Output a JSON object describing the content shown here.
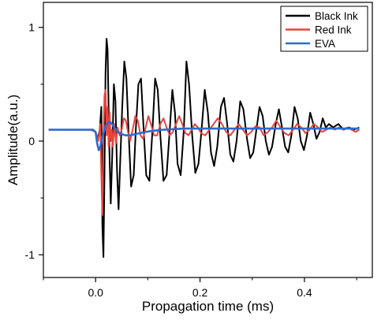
{
  "chart_data": {
    "type": "line",
    "title": "",
    "xlabel": "Propagation time (ms)",
    "ylabel": "Amplitude(a.u.)",
    "xlim": [
      -0.1,
      0.53
    ],
    "ylim": [
      -1.2,
      1.22
    ],
    "x_ticks": [
      0.0,
      0.2,
      0.4
    ],
    "x_tick_labels": [
      "0.0",
      "0.2",
      "0.4"
    ],
    "y_ticks": [
      -1,
      0,
      1
    ],
    "y_tick_labels": [
      "-1",
      "0",
      "1"
    ],
    "grid": false,
    "legend_position": "top-right",
    "series": [
      {
        "name": "Black Ink",
        "color": "#000000",
        "points": [
          [
            -0.09,
            0.1
          ],
          [
            -0.06,
            0.1
          ],
          [
            -0.03,
            0.1
          ],
          [
            -0.005,
            0.1
          ],
          [
            0.0,
            0.08
          ],
          [
            0.004,
            0.02
          ],
          [
            0.008,
            0.1
          ],
          [
            0.011,
            0.3
          ],
          [
            0.013,
            -0.75
          ],
          [
            0.015,
            -1.02
          ],
          [
            0.017,
            -0.3
          ],
          [
            0.019,
            0.6
          ],
          [
            0.021,
            0.9
          ],
          [
            0.023,
            0.8
          ],
          [
            0.026,
            0.0
          ],
          [
            0.029,
            -0.55
          ],
          [
            0.032,
            -0.1
          ],
          [
            0.035,
            0.5
          ],
          [
            0.038,
            0.35
          ],
          [
            0.041,
            -0.25
          ],
          [
            0.044,
            -0.6
          ],
          [
            0.047,
            -0.2
          ],
          [
            0.051,
            0.3
          ],
          [
            0.055,
            0.7
          ],
          [
            0.059,
            0.55
          ],
          [
            0.063,
            0.1
          ],
          [
            0.068,
            -0.4
          ],
          [
            0.073,
            -0.3
          ],
          [
            0.077,
            0.1
          ],
          [
            0.082,
            0.5
          ],
          [
            0.087,
            0.55
          ],
          [
            0.092,
            0.1
          ],
          [
            0.097,
            -0.3
          ],
          [
            0.103,
            -0.35
          ],
          [
            0.109,
            0.1
          ],
          [
            0.114,
            0.55
          ],
          [
            0.119,
            0.45
          ],
          [
            0.124,
            0.05
          ],
          [
            0.13,
            -0.35
          ],
          [
            0.136,
            -0.3
          ],
          [
            0.142,
            0.1
          ],
          [
            0.147,
            0.45
          ],
          [
            0.152,
            0.25
          ],
          [
            0.157,
            -0.2
          ],
          [
            0.163,
            -0.3
          ],
          [
            0.169,
            0.1
          ],
          [
            0.174,
            0.7
          ],
          [
            0.179,
            0.5
          ],
          [
            0.185,
            0.05
          ],
          [
            0.191,
            -0.28
          ],
          [
            0.197,
            -0.2
          ],
          [
            0.203,
            0.1
          ],
          [
            0.209,
            0.45
          ],
          [
            0.215,
            0.25
          ],
          [
            0.221,
            -0.1
          ],
          [
            0.227,
            -0.22
          ],
          [
            0.233,
            -0.05
          ],
          [
            0.24,
            0.3
          ],
          [
            0.246,
            0.38
          ],
          [
            0.252,
            0.15
          ],
          [
            0.258,
            -0.12
          ],
          [
            0.264,
            -0.18
          ],
          [
            0.27,
            0.0
          ],
          [
            0.277,
            0.35
          ],
          [
            0.283,
            0.28
          ],
          [
            0.29,
            0.02
          ],
          [
            0.296,
            -0.15
          ],
          [
            0.302,
            -0.1
          ],
          [
            0.308,
            0.1
          ],
          [
            0.314,
            0.3
          ],
          [
            0.32,
            0.22
          ],
          [
            0.326,
            0.0
          ],
          [
            0.332,
            -0.12
          ],
          [
            0.338,
            -0.05
          ],
          [
            0.345,
            0.15
          ],
          [
            0.351,
            0.28
          ],
          [
            0.357,
            0.12
          ],
          [
            0.363,
            -0.05
          ],
          [
            0.369,
            -0.1
          ],
          [
            0.375,
            0.05
          ],
          [
            0.381,
            0.3
          ],
          [
            0.387,
            0.2
          ],
          [
            0.393,
            0.0
          ],
          [
            0.399,
            -0.08
          ],
          [
            0.405,
            0.05
          ],
          [
            0.411,
            0.25
          ],
          [
            0.417,
            0.15
          ],
          [
            0.423,
            0.02
          ],
          [
            0.429,
            0.08
          ],
          [
            0.435,
            0.2
          ],
          [
            0.441,
            0.12
          ],
          [
            0.447,
            0.15
          ],
          [
            0.455,
            0.12
          ],
          [
            0.465,
            0.15
          ],
          [
            0.475,
            0.1
          ],
          [
            0.485,
            0.12
          ],
          [
            0.495,
            0.1
          ],
          [
            0.505,
            0.12
          ]
        ]
      },
      {
        "name": "Red Ink",
        "color": "#e8443c",
        "points": [
          [
            -0.09,
            0.1
          ],
          [
            -0.05,
            0.1
          ],
          [
            -0.01,
            0.1
          ],
          [
            0.0,
            0.08
          ],
          [
            0.005,
            0.0
          ],
          [
            0.009,
            0.15
          ],
          [
            0.011,
            -0.3
          ],
          [
            0.013,
            -0.65
          ],
          [
            0.015,
            0.0
          ],
          [
            0.017,
            0.4
          ],
          [
            0.019,
            0.45
          ],
          [
            0.021,
            0.05
          ],
          [
            0.023,
            0.3
          ],
          [
            0.025,
            -0.05
          ],
          [
            0.027,
            0.25
          ],
          [
            0.029,
            0.0
          ],
          [
            0.031,
            0.1
          ],
          [
            0.033,
            -0.05
          ],
          [
            0.036,
            0.15
          ],
          [
            0.039,
            -0.02
          ],
          [
            0.042,
            0.12
          ],
          [
            0.046,
            0.05
          ],
          [
            0.05,
            0.1
          ],
          [
            0.054,
            0.2
          ],
          [
            0.058,
            0.18
          ],
          [
            0.062,
            0.08
          ],
          [
            0.066,
            0.0
          ],
          [
            0.071,
            0.1
          ],
          [
            0.076,
            0.22
          ],
          [
            0.081,
            0.18
          ],
          [
            0.086,
            0.05
          ],
          [
            0.091,
            0.02
          ],
          [
            0.096,
            0.12
          ],
          [
            0.101,
            0.22
          ],
          [
            0.106,
            0.15
          ],
          [
            0.112,
            0.05
          ],
          [
            0.118,
            0.05
          ],
          [
            0.124,
            0.15
          ],
          [
            0.13,
            0.2
          ],
          [
            0.136,
            0.12
          ],
          [
            0.142,
            0.05
          ],
          [
            0.148,
            0.08
          ],
          [
            0.154,
            0.15
          ],
          [
            0.16,
            0.22
          ],
          [
            0.166,
            0.15
          ],
          [
            0.172,
            0.07
          ],
          [
            0.178,
            0.05
          ],
          [
            0.184,
            0.1
          ],
          [
            0.19,
            0.15
          ],
          [
            0.196,
            0.12
          ],
          [
            0.202,
            0.07
          ],
          [
            0.21,
            0.05
          ],
          [
            0.218,
            0.1
          ],
          [
            0.226,
            0.15
          ],
          [
            0.234,
            0.2
          ],
          [
            0.242,
            0.15
          ],
          [
            0.25,
            0.08
          ],
          [
            0.258,
            0.05
          ],
          [
            0.266,
            0.1
          ],
          [
            0.274,
            0.15
          ],
          [
            0.282,
            0.1
          ],
          [
            0.29,
            0.05
          ],
          [
            0.298,
            0.08
          ],
          [
            0.306,
            0.13
          ],
          [
            0.314,
            0.12
          ],
          [
            0.322,
            0.05
          ],
          [
            0.33,
            0.08
          ],
          [
            0.338,
            0.12
          ],
          [
            0.346,
            0.18
          ],
          [
            0.354,
            0.12
          ],
          [
            0.362,
            0.07
          ],
          [
            0.37,
            0.05
          ],
          [
            0.378,
            0.1
          ],
          [
            0.386,
            0.15
          ],
          [
            0.394,
            0.12
          ],
          [
            0.402,
            0.07
          ],
          [
            0.41,
            0.1
          ],
          [
            0.418,
            0.15
          ],
          [
            0.426,
            0.12
          ],
          [
            0.434,
            0.08
          ],
          [
            0.442,
            0.1
          ],
          [
            0.45,
            0.12
          ],
          [
            0.458,
            0.1
          ],
          [
            0.466,
            0.12
          ],
          [
            0.474,
            0.1
          ],
          [
            0.482,
            0.12
          ],
          [
            0.49,
            0.1
          ],
          [
            0.498,
            0.08
          ],
          [
            0.505,
            0.1
          ]
        ]
      },
      {
        "name": "EVA",
        "color": "#2c6bd1",
        "points": [
          [
            -0.09,
            0.1
          ],
          [
            -0.06,
            0.1
          ],
          [
            -0.03,
            0.1
          ],
          [
            -0.005,
            0.1
          ],
          [
            0.0,
            0.08
          ],
          [
            0.003,
            -0.02
          ],
          [
            0.006,
            -0.08
          ],
          [
            0.009,
            -0.05
          ],
          [
            0.012,
            0.02
          ],
          [
            0.016,
            0.08
          ],
          [
            0.02,
            0.14
          ],
          [
            0.025,
            0.17
          ],
          [
            0.03,
            0.16
          ],
          [
            0.036,
            0.12
          ],
          [
            0.042,
            0.08
          ],
          [
            0.05,
            0.06
          ],
          [
            0.058,
            0.05
          ],
          [
            0.066,
            0.05
          ],
          [
            0.075,
            0.06
          ],
          [
            0.085,
            0.07
          ],
          [
            0.095,
            0.08
          ],
          [
            0.11,
            0.09
          ],
          [
            0.13,
            0.1
          ],
          [
            0.15,
            0.105
          ],
          [
            0.17,
            0.11
          ],
          [
            0.2,
            0.11
          ],
          [
            0.25,
            0.11
          ],
          [
            0.3,
            0.11
          ],
          [
            0.35,
            0.11
          ],
          [
            0.4,
            0.11
          ],
          [
            0.45,
            0.11
          ],
          [
            0.505,
            0.11
          ]
        ]
      }
    ]
  }
}
